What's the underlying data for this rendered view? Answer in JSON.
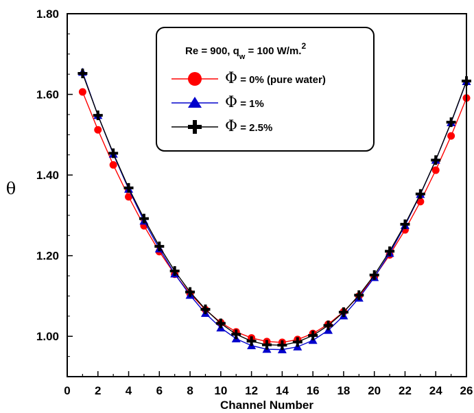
{
  "chart_data": {
    "type": "line",
    "xlabel": "Channel Number",
    "ylabel": "θ",
    "xlim": [
      0,
      26
    ],
    "ylim": [
      0.9,
      1.8
    ],
    "xticks": [
      "0",
      "2",
      "4",
      "6",
      "8",
      "10",
      "12",
      "14",
      "16",
      "18",
      "20",
      "22",
      "24",
      "26"
    ],
    "yticks": [
      "1.00",
      "1.20",
      "1.40",
      "1.60",
      "1.80"
    ],
    "grid": false,
    "legend_position": "top-center",
    "legend_title": {
      "main": "Re = 900, q",
      "sub": "w",
      "rest": " = 100 W/m.",
      "sup": "2"
    },
    "phi_symbol": "Φ",
    "x": [
      1,
      2,
      3,
      4,
      5,
      6,
      7,
      8,
      9,
      10,
      11,
      12,
      13,
      14,
      15,
      16,
      17,
      18,
      19,
      20,
      21,
      22,
      23,
      24,
      25,
      26
    ],
    "series": [
      {
        "name": " = 0% (pure water)",
        "color": "#ff0000",
        "marker": "circle",
        "values": [
          1.606,
          1.512,
          1.425,
          1.346,
          1.274,
          1.21,
          1.154,
          1.106,
          1.066,
          1.034,
          1.011,
          0.996,
          0.987,
          0.985,
          0.992,
          1.007,
          1.03,
          1.061,
          1.1,
          1.147,
          1.202,
          1.264,
          1.334,
          1.412,
          1.497,
          1.591
        ]
      },
      {
        "name": " = 1%",
        "color": "#0000cc",
        "marker": "triangle",
        "values": [
          1.655,
          1.548,
          1.452,
          1.365,
          1.286,
          1.217,
          1.155,
          1.102,
          1.057,
          1.021,
          0.994,
          0.977,
          0.968,
          0.967,
          0.974,
          0.99,
          1.015,
          1.051,
          1.095,
          1.146,
          1.206,
          1.275,
          1.352,
          1.437,
          1.53,
          1.632
        ]
      },
      {
        "name": " = 2.5%",
        "color": "#000000",
        "marker": "plus",
        "values": [
          1.652,
          1.548,
          1.454,
          1.368,
          1.292,
          1.223,
          1.162,
          1.11,
          1.067,
          1.032,
          1.005,
          0.988,
          0.979,
          0.978,
          0.986,
          1.002,
          1.027,
          1.06,
          1.102,
          1.152,
          1.211,
          1.278,
          1.353,
          1.437,
          1.531,
          1.633
        ]
      }
    ]
  }
}
